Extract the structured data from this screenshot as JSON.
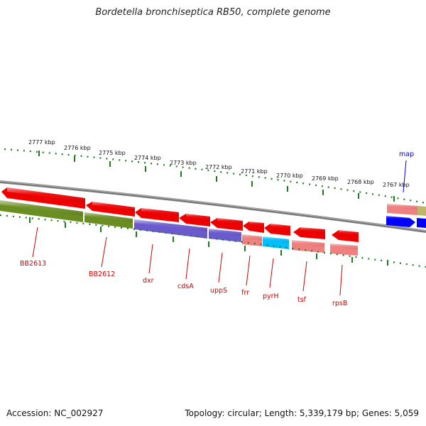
{
  "title": "Bordetella bronchiseptica RB50, complete genome",
  "footer": {
    "accession": "Accession: NC_002927",
    "summary": "Topology: circular; Length: 5,339,179 bp; Genes: 5,059"
  },
  "colors": {
    "backbone": "#7a7a7a",
    "tick": "#1e7a1e",
    "label_red": "#cc0000",
    "label_blue": "#0000cc",
    "feature_red": "#ee0000",
    "feature_olive": "#6b8e23",
    "feature_purple": "#6a5acd",
    "feature_salmon": "#f08080",
    "feature_cyan": "#00bfff",
    "feature_blue": "#0000ff",
    "feature_khaki": "#bdb76b"
  },
  "kbp_labels": [
    "2777 kbp",
    "2776 kbp",
    "2775 kbp",
    "2774 kbp",
    "2773 kbp",
    "2772 kbp",
    "2771 kbp",
    "2770 kbp",
    "2769 kbp",
    "2768 kbp",
    "2767 kbp"
  ],
  "gene_labels": [
    "BB2613",
    "BB2612",
    "dxr",
    "cdsA",
    "uppS",
    "frr",
    "pyrH",
    "tsf",
    "rpsB",
    "map"
  ]
}
